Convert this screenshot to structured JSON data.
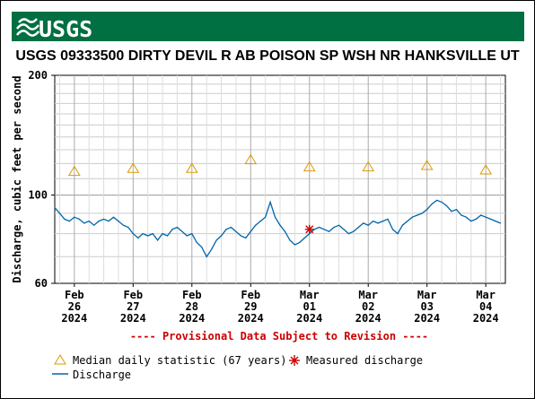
{
  "header": {
    "logo_text": "USGS",
    "brand_color": "#006f41"
  },
  "chart_data": {
    "type": "line",
    "title": "USGS 09333500 DIRTY DEVIL R AB POISON SP WSH NR HANKSVILLE UT",
    "ylabel": "Discharge, cubic feet per second",
    "xlabel": "",
    "y_scale": "log",
    "ylim": [
      60,
      200
    ],
    "y_ticks": [
      {
        "value": 60,
        "label": "60"
      },
      {
        "value": 100,
        "label": "100"
      },
      {
        "value": 200,
        "label": "200"
      }
    ],
    "x_range": [
      "2024-02-25T16:00",
      "2024-03-04T08:00"
    ],
    "x_ticks": [
      {
        "date": "2024-02-26",
        "label_line1": "Feb",
        "label_line2": "26",
        "label_line3": "2024"
      },
      {
        "date": "2024-02-27",
        "label_line1": "Feb",
        "label_line2": "27",
        "label_line3": "2024"
      },
      {
        "date": "2024-02-28",
        "label_line1": "Feb",
        "label_line2": "28",
        "label_line3": "2024"
      },
      {
        "date": "2024-02-29",
        "label_line1": "Feb",
        "label_line2": "29",
        "label_line3": "2024"
      },
      {
        "date": "2024-03-01",
        "label_line1": "Mar",
        "label_line2": "01",
        "label_line3": "2024"
      },
      {
        "date": "2024-03-02",
        "label_line1": "Mar",
        "label_line2": "02",
        "label_line3": "2024"
      },
      {
        "date": "2024-03-03",
        "label_line1": "Mar",
        "label_line2": "03",
        "label_line3": "2024"
      },
      {
        "date": "2024-03-04",
        "label_line1": "Mar",
        "label_line2": "04",
        "label_line3": "2024"
      }
    ],
    "grid": true,
    "series": [
      {
        "name": "Discharge",
        "color": "#0066aa",
        "points": [
          [
            "2024-02-25T16:00",
            93
          ],
          [
            "2024-02-25T18:00",
            90
          ],
          [
            "2024-02-25T20:00",
            87
          ],
          [
            "2024-02-25T22:00",
            86
          ],
          [
            "2024-02-26T00:00",
            88
          ],
          [
            "2024-02-26T02:00",
            87
          ],
          [
            "2024-02-26T04:00",
            85
          ],
          [
            "2024-02-26T06:00",
            86
          ],
          [
            "2024-02-26T08:00",
            84
          ],
          [
            "2024-02-26T10:00",
            86
          ],
          [
            "2024-02-26T12:00",
            87
          ],
          [
            "2024-02-26T14:00",
            86
          ],
          [
            "2024-02-26T16:00",
            88
          ],
          [
            "2024-02-26T18:00",
            86
          ],
          [
            "2024-02-26T20:00",
            84
          ],
          [
            "2024-02-26T22:00",
            83
          ],
          [
            "2024-02-27T00:00",
            80
          ],
          [
            "2024-02-27T02:00",
            78
          ],
          [
            "2024-02-27T04:00",
            80
          ],
          [
            "2024-02-27T06:00",
            79
          ],
          [
            "2024-02-27T08:00",
            80
          ],
          [
            "2024-02-27T10:00",
            77
          ],
          [
            "2024-02-27T12:00",
            80
          ],
          [
            "2024-02-27T14:00",
            79
          ],
          [
            "2024-02-27T16:00",
            82
          ],
          [
            "2024-02-27T18:00",
            83
          ],
          [
            "2024-02-27T20:00",
            81
          ],
          [
            "2024-02-27T22:00",
            79
          ],
          [
            "2024-02-28T00:00",
            80
          ],
          [
            "2024-02-28T02:00",
            76
          ],
          [
            "2024-02-28T04:00",
            74
          ],
          [
            "2024-02-28T06:00",
            70
          ],
          [
            "2024-02-28T08:00",
            73
          ],
          [
            "2024-02-28T10:00",
            77
          ],
          [
            "2024-02-28T12:00",
            79
          ],
          [
            "2024-02-28T14:00",
            82
          ],
          [
            "2024-02-28T16:00",
            83
          ],
          [
            "2024-02-28T18:00",
            81
          ],
          [
            "2024-02-28T20:00",
            79
          ],
          [
            "2024-02-28T22:00",
            78
          ],
          [
            "2024-02-29T00:00",
            81
          ],
          [
            "2024-02-29T02:00",
            84
          ],
          [
            "2024-02-29T04:00",
            86
          ],
          [
            "2024-02-29T06:00",
            88
          ],
          [
            "2024-02-29T08:00",
            96
          ],
          [
            "2024-02-29T10:00",
            88
          ],
          [
            "2024-02-29T12:00",
            84
          ],
          [
            "2024-02-29T14:00",
            81
          ],
          [
            "2024-02-29T16:00",
            77
          ],
          [
            "2024-02-29T18:00",
            75
          ],
          [
            "2024-02-29T20:00",
            76
          ],
          [
            "2024-02-29T22:00",
            78
          ],
          [
            "2024-03-01T00:00",
            80
          ],
          [
            "2024-03-01T02:00",
            82
          ],
          [
            "2024-03-01T04:00",
            83
          ],
          [
            "2024-03-01T06:00",
            82
          ],
          [
            "2024-03-01T08:00",
            81
          ],
          [
            "2024-03-01T10:00",
            83
          ],
          [
            "2024-03-01T12:00",
            84
          ],
          [
            "2024-03-01T14:00",
            82
          ],
          [
            "2024-03-01T16:00",
            80
          ],
          [
            "2024-03-01T18:00",
            81
          ],
          [
            "2024-03-01T20:00",
            83
          ],
          [
            "2024-03-01T22:00",
            85
          ],
          [
            "2024-03-02T00:00",
            84
          ],
          [
            "2024-03-02T02:00",
            86
          ],
          [
            "2024-03-02T04:00",
            85
          ],
          [
            "2024-03-02T06:00",
            86
          ],
          [
            "2024-03-02T08:00",
            87
          ],
          [
            "2024-03-02T10:00",
            82
          ],
          [
            "2024-03-02T12:00",
            80
          ],
          [
            "2024-03-02T14:00",
            84
          ],
          [
            "2024-03-02T16:00",
            86
          ],
          [
            "2024-03-02T18:00",
            88
          ],
          [
            "2024-03-02T20:00",
            89
          ],
          [
            "2024-03-02T22:00",
            90
          ],
          [
            "2024-03-03T00:00",
            92
          ],
          [
            "2024-03-03T02:00",
            95
          ],
          [
            "2024-03-03T04:00",
            97
          ],
          [
            "2024-03-03T06:00",
            96
          ],
          [
            "2024-03-03T08:00",
            94
          ],
          [
            "2024-03-03T10:00",
            91
          ],
          [
            "2024-03-03T12:00",
            92
          ],
          [
            "2024-03-03T14:00",
            89
          ],
          [
            "2024-03-03T16:00",
            88
          ],
          [
            "2024-03-03T18:00",
            86
          ],
          [
            "2024-03-03T20:00",
            87
          ],
          [
            "2024-03-03T22:00",
            89
          ],
          [
            "2024-03-04T00:00",
            88
          ],
          [
            "2024-03-04T02:00",
            87
          ],
          [
            "2024-03-04T04:00",
            86
          ],
          [
            "2024-03-04T06:00",
            85
          ]
        ]
      },
      {
        "name": "Median daily statistic (67 years)",
        "color": "#dd9900",
        "marker": "triangle",
        "points": [
          [
            "2024-02-26T00:00",
            115
          ],
          [
            "2024-02-27T00:00",
            117
          ],
          [
            "2024-02-28T00:00",
            117
          ],
          [
            "2024-02-29T00:00",
            123
          ],
          [
            "2024-03-01T00:00",
            118
          ],
          [
            "2024-03-02T00:00",
            118
          ],
          [
            "2024-03-03T00:00",
            119
          ],
          [
            "2024-03-04T00:00",
            116
          ]
        ]
      },
      {
        "name": "Measured discharge",
        "color": "#cc0000",
        "marker": "asterisk",
        "points": [
          [
            "2024-03-01T00:00",
            82
          ]
        ]
      }
    ],
    "annotation": "---- Provisional Data Subject to Revision ----",
    "legend": {
      "placement": "bottom",
      "median_label": "Median daily statistic (67 years)",
      "measured_label": "Measured discharge",
      "discharge_label": "Discharge"
    }
  }
}
